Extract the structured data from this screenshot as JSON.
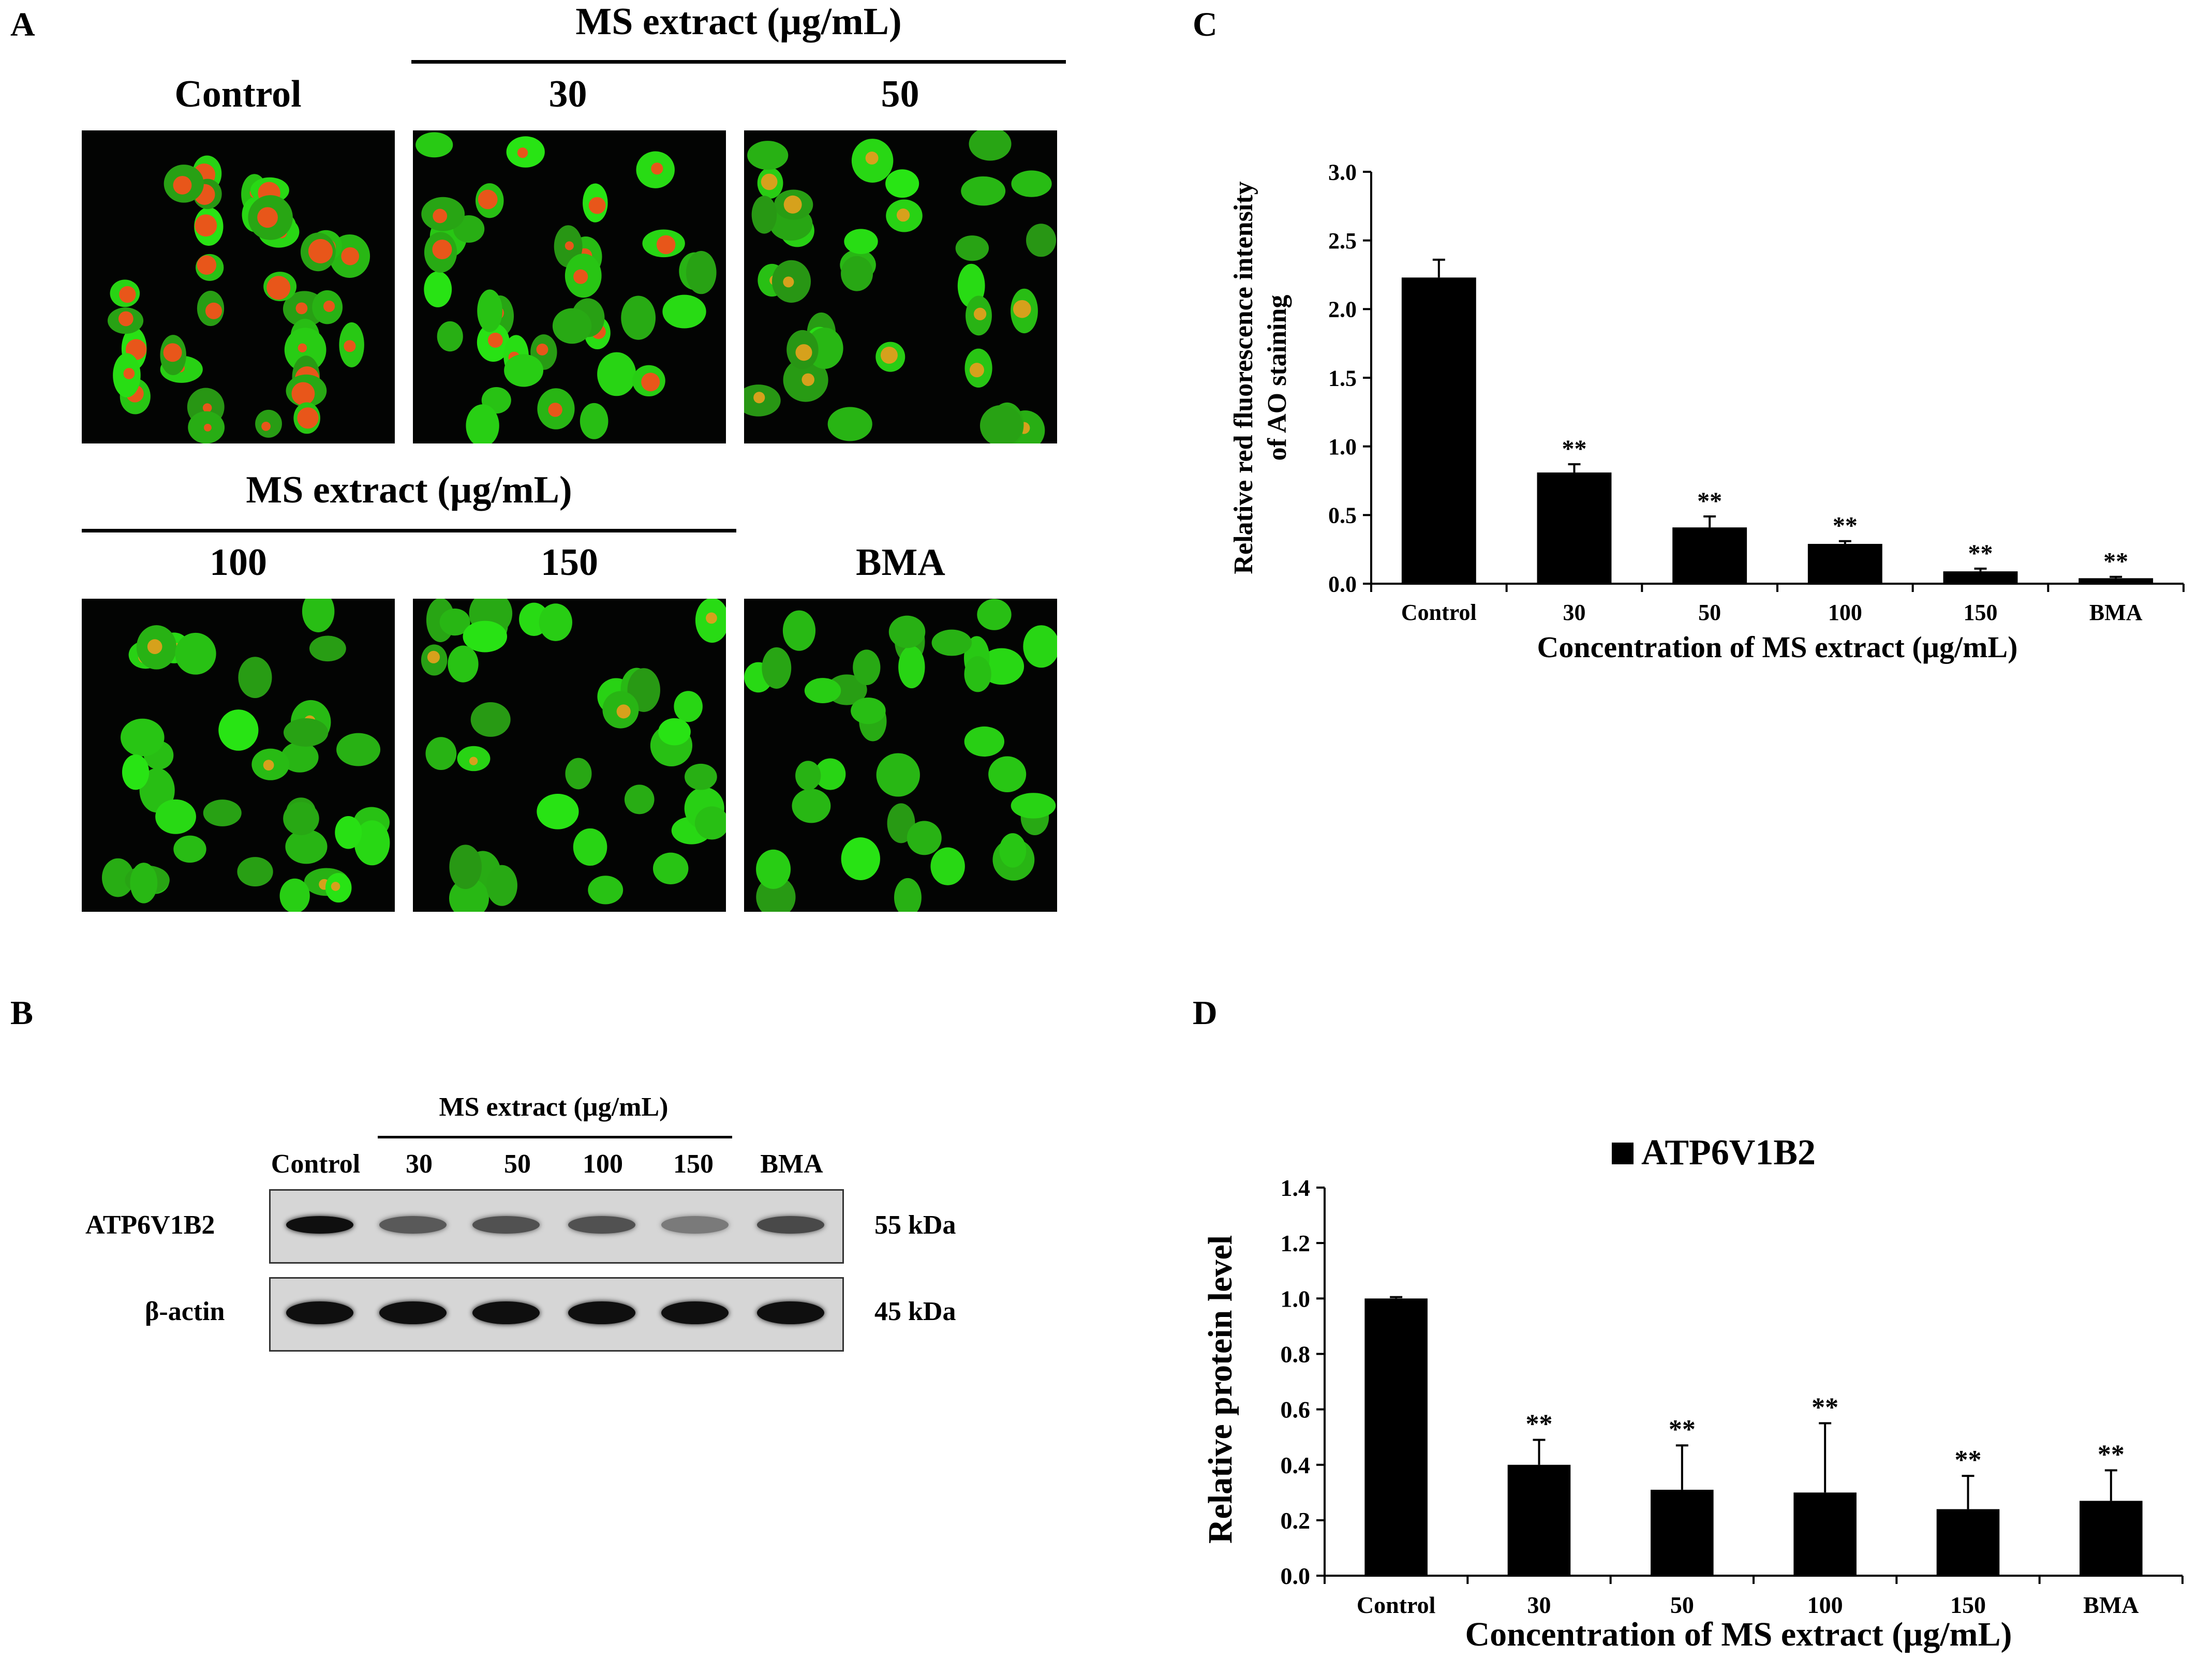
{
  "panels": {
    "a": "A",
    "b": "B",
    "c": "C",
    "d": "D"
  },
  "panelA": {
    "group_label": "MS extract (µg/mL)",
    "images": [
      {
        "label": "Control",
        "red_level": 1.0
      },
      {
        "label": "30",
        "red_level": 0.6
      },
      {
        "label": "50",
        "red_level": 0.45
      },
      {
        "label": "100",
        "red_level": 0.25
      },
      {
        "label": "150",
        "red_level": 0.12
      },
      {
        "label": "BMA",
        "red_level": 0.0
      }
    ]
  },
  "panelB": {
    "group_label": "MS extract (µg/mL)",
    "lanes": [
      "Control",
      "30",
      "50",
      "100",
      "150",
      "BMA"
    ],
    "rows": [
      {
        "protein": "ATP6V1B2",
        "size": "55 kDa",
        "intensities": [
          1.0,
          0.55,
          0.6,
          0.6,
          0.35,
          0.65
        ]
      },
      {
        "protein": "β-actin",
        "size": "45 kDa",
        "intensities": [
          1.0,
          1.0,
          1.0,
          1.0,
          1.0,
          1.0
        ]
      }
    ]
  },
  "chart_data": [
    {
      "type": "bar",
      "panel": "C",
      "categories": [
        "Control",
        "30",
        "50",
        "100",
        "150",
        "BMA"
      ],
      "values": [
        2.23,
        0.81,
        0.41,
        0.29,
        0.09,
        0.04
      ],
      "errors": [
        0.13,
        0.06,
        0.08,
        0.02,
        0.02,
        0.01
      ],
      "annotations": [
        "",
        "**",
        "**",
        "**",
        "**",
        "**"
      ],
      "ylabel_line1": "Relative red fluorescence  intensity",
      "ylabel_line2": "of AO staining",
      "xlabel": "Concentration of MS extract  (µg/mL)",
      "ylim": [
        0,
        3.0
      ],
      "yticks": [
        "0.0",
        "0.5",
        "1.0",
        "1.5",
        "2.0",
        "2.5",
        "3.0"
      ],
      "grid": false,
      "bar_color": "#000000"
    },
    {
      "type": "bar",
      "panel": "D",
      "legend": "ATP6V1B2",
      "legend_position": "top",
      "categories": [
        "Control",
        "30",
        "50",
        "100",
        "150",
        "BMA"
      ],
      "values": [
        1.0,
        0.4,
        0.31,
        0.3,
        0.24,
        0.27
      ],
      "errors": [
        0.005,
        0.09,
        0.16,
        0.25,
        0.12,
        0.11
      ],
      "annotations": [
        "",
        "**",
        "**",
        "**",
        "**",
        "**"
      ],
      "ylabel": "Relative protein level",
      "xlabel": "Concentration of MS extract  (µg/mL)",
      "ylim": [
        0,
        1.4
      ],
      "yticks": [
        "0.0",
        "0.2",
        "0.4",
        "0.6",
        "0.8",
        "1.0",
        "1.2",
        "1.4"
      ],
      "grid": false,
      "bar_color": "#000000"
    }
  ]
}
